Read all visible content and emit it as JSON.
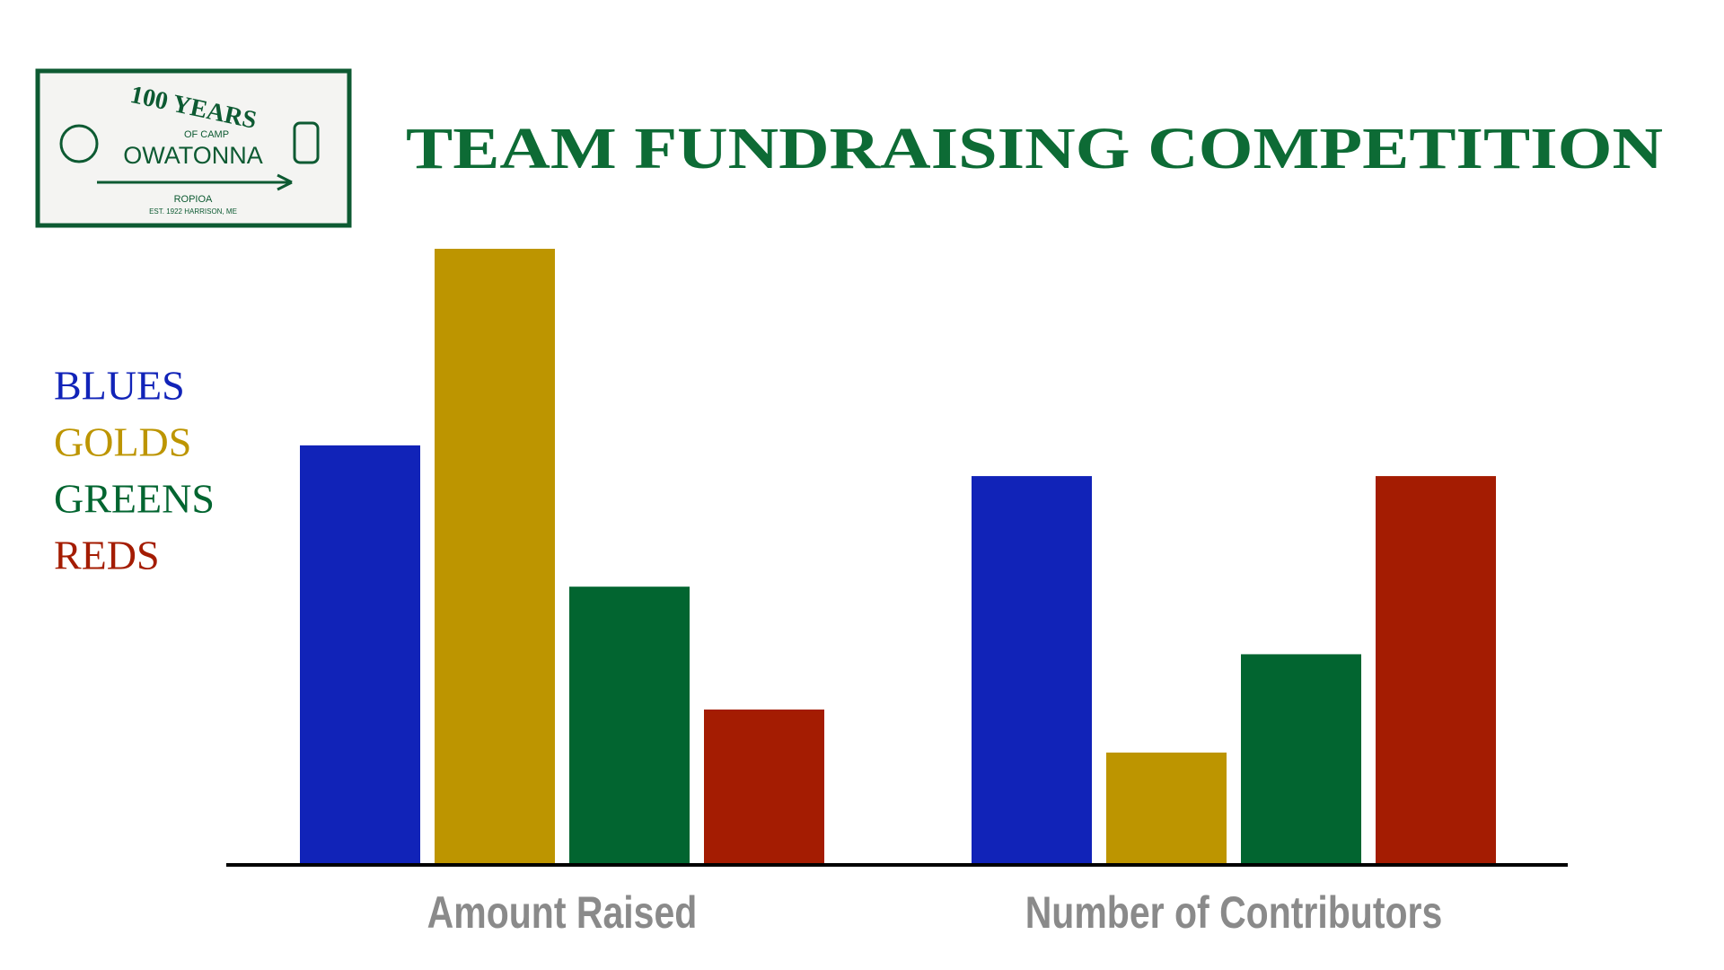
{
  "logo": {
    "line1": "100 YEARS",
    "line2": "OF CAMP",
    "line3": "OWATONNA",
    "line4": "ROPIOA",
    "line5": "EST. 1922  HARRISON, ME"
  },
  "chart_data": {
    "type": "bar",
    "title": "TEAM FUNDRAISING COMPETITION",
    "categories": [
      "Amount Raised",
      "Number of Contributors"
    ],
    "series": [
      {
        "name": "BLUES",
        "color": "#1123b8",
        "values": [
          68,
          63
        ]
      },
      {
        "name": "GOLDS",
        "color": "#bd9500",
        "values": [
          100,
          18
        ]
      },
      {
        "name": "GREENS",
        "color": "#026530",
        "values": [
          45,
          34
        ]
      },
      {
        "name": "REDS",
        "color": "#a41c02",
        "values": [
          25,
          63
        ]
      }
    ],
    "ylim": [
      0,
      100
    ]
  }
}
